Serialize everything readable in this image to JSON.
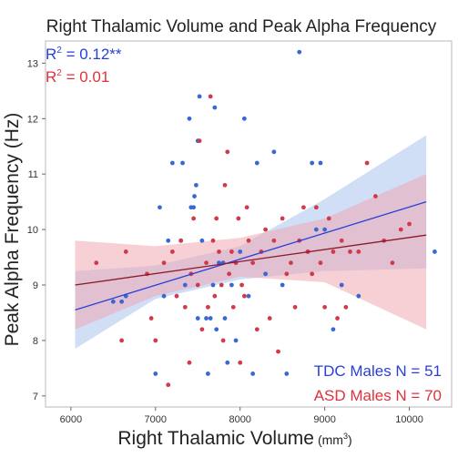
{
  "chart_data": {
    "type": "scatter",
    "title": "Right Thalamic Volume and Peak Alpha Frequency",
    "xlabel": "Right Thalamic Volume",
    "xlabel_unit": "(mm",
    "xlabel_unit_sup": "3",
    "xlabel_unit_close": ")",
    "ylabel": "Peak Alpha Frequency (Hz)",
    "xlim": [
      5700,
      10500
    ],
    "ylim": [
      6.8,
      13.4
    ],
    "xticks": [
      "6000",
      "7000",
      "8000",
      "9000",
      "10000"
    ],
    "yticks": [
      "7",
      "8",
      "9",
      "10",
      "11",
      "12",
      "13"
    ],
    "annotations": {
      "tdc": {
        "prefix": "R",
        "sup": "2",
        "suffix": " = 0.12**"
      },
      "asd": {
        "prefix": "R",
        "sup": "2",
        "suffix": " = 0.01"
      }
    },
    "legend_position": "bottom-right",
    "colors": {
      "tdc": "#3a66d6",
      "asd": "#d13a4a",
      "tdc_line": "#2a3fd8",
      "asd_line": "#8b1a2a",
      "tdc_band": "#a9c3ee",
      "asd_band": "#eeaab2"
    },
    "series": [
      {
        "name": "TDC Males N = 51",
        "fit": {
          "x": [
            6050,
            10200
          ],
          "y": [
            8.55,
            10.5
          ]
        },
        "band_lower": {
          "x": [
            6050,
            7000,
            8000,
            9000,
            10200
          ],
          "y": [
            7.85,
            8.75,
            9.1,
            9.25,
            9.3
          ]
        },
        "band_upper": {
          "x": [
            6050,
            7000,
            8000,
            9000,
            10200
          ],
          "y": [
            9.25,
            9.35,
            9.7,
            10.55,
            11.7
          ]
        },
        "points": [
          [
            6500,
            8.7
          ],
          [
            6600,
            8.7
          ],
          [
            6650,
            8.8
          ],
          [
            7000,
            7.4
          ],
          [
            7050,
            10.4
          ],
          [
            7100,
            8.8
          ],
          [
            7150,
            9.8
          ],
          [
            7200,
            11.2
          ],
          [
            7300,
            9.8
          ],
          [
            7320,
            11.2
          ],
          [
            7350,
            9.0
          ],
          [
            7400,
            12.0
          ],
          [
            7420,
            10.4
          ],
          [
            7450,
            10.4
          ],
          [
            7460,
            10.6
          ],
          [
            7480,
            10.8
          ],
          [
            7500,
            8.4
          ],
          [
            7500,
            11.6
          ],
          [
            7520,
            12.4
          ],
          [
            7550,
            9.8
          ],
          [
            7600,
            8.4
          ],
          [
            7620,
            7.4
          ],
          [
            7650,
            8.4
          ],
          [
            7680,
            9.0
          ],
          [
            7700,
            12.2
          ],
          [
            7720,
            8.2
          ],
          [
            7750,
            9.4
          ],
          [
            7800,
            9.4
          ],
          [
            7820,
            8.4
          ],
          [
            7850,
            7.6
          ],
          [
            7900,
            9.0
          ],
          [
            7950,
            8.0
          ],
          [
            8000,
            9.6
          ],
          [
            8050,
            12.0
          ],
          [
            8100,
            8.8
          ],
          [
            8150,
            7.4
          ],
          [
            8200,
            11.2
          ],
          [
            8300,
            9.2
          ],
          [
            8400,
            11.4
          ],
          [
            8500,
            9.0
          ],
          [
            8550,
            7.4
          ],
          [
            8700,
            13.2
          ],
          [
            8800,
            9.6
          ],
          [
            8850,
            11.2
          ],
          [
            8900,
            10.0
          ],
          [
            8950,
            11.2
          ],
          [
            9000,
            10.0
          ],
          [
            9100,
            8.2
          ],
          [
            9200,
            9.0
          ],
          [
            9400,
            8.8
          ],
          [
            10300,
            9.6
          ]
        ]
      },
      {
        "name": "ASD Males N = 70",
        "fit": {
          "x": [
            6050,
            10200
          ],
          "y": [
            9.0,
            9.9
          ]
        },
        "band_lower": {
          "x": [
            6050,
            7000,
            8000,
            9000,
            10200
          ],
          "y": [
            8.2,
            8.8,
            9.15,
            9.05,
            8.2
          ]
        },
        "band_upper": {
          "x": [
            6050,
            7000,
            8000,
            9000,
            10200
          ],
          "y": [
            9.8,
            9.7,
            9.85,
            10.2,
            11.0
          ]
        },
        "points": [
          [
            6300,
            9.4
          ],
          [
            6600,
            8.0
          ],
          [
            6650,
            9.6
          ],
          [
            6900,
            9.2
          ],
          [
            6950,
            8.4
          ],
          [
            7000,
            8.0
          ],
          [
            7100,
            9.4
          ],
          [
            7150,
            7.2
          ],
          [
            7200,
            9.6
          ],
          [
            7250,
            8.8
          ],
          [
            7300,
            9.8
          ],
          [
            7350,
            8.6
          ],
          [
            7400,
            7.6
          ],
          [
            7420,
            9.2
          ],
          [
            7450,
            10.2
          ],
          [
            7500,
            9.0
          ],
          [
            7520,
            11.6
          ],
          [
            7550,
            8.2
          ],
          [
            7600,
            9.4
          ],
          [
            7620,
            8.6
          ],
          [
            7650,
            12.4
          ],
          [
            7680,
            9.8
          ],
          [
            7700,
            8.8
          ],
          [
            7720,
            10.2
          ],
          [
            7750,
            9.6
          ],
          [
            7780,
            9.0
          ],
          [
            7800,
            8.0
          ],
          [
            7820,
            10.8
          ],
          [
            7850,
            11.4
          ],
          [
            7870,
            9.2
          ],
          [
            7900,
            9.6
          ],
          [
            7920,
            8.6
          ],
          [
            7950,
            9.4
          ],
          [
            7980,
            10.2
          ],
          [
            8000,
            7.6
          ],
          [
            8020,
            9.0
          ],
          [
            8050,
            8.8
          ],
          [
            8080,
            10.4
          ],
          [
            8100,
            9.8
          ],
          [
            8150,
            9.4
          ],
          [
            8200,
            8.2
          ],
          [
            8250,
            9.6
          ],
          [
            8300,
            10.0
          ],
          [
            8350,
            8.4
          ],
          [
            8400,
            9.8
          ],
          [
            8450,
            7.8
          ],
          [
            8500,
            10.2
          ],
          [
            8550,
            9.2
          ],
          [
            8600,
            9.4
          ],
          [
            8650,
            8.6
          ],
          [
            8700,
            9.8
          ],
          [
            8750,
            10.4
          ],
          [
            8800,
            9.6
          ],
          [
            8850,
            9.2
          ],
          [
            8900,
            10.4
          ],
          [
            8950,
            9.4
          ],
          [
            9000,
            8.6
          ],
          [
            9050,
            10.2
          ],
          [
            9100,
            9.6
          ],
          [
            9150,
            8.4
          ],
          [
            9200,
            9.8
          ],
          [
            9250,
            8.6
          ],
          [
            9300,
            9.6
          ],
          [
            9400,
            9.6
          ],
          [
            9500,
            11.2
          ],
          [
            9600,
            10.6
          ],
          [
            9700,
            9.8
          ],
          [
            9800,
            9.4
          ],
          [
            9900,
            10.0
          ],
          [
            10000,
            10.1
          ]
        ]
      }
    ]
  }
}
